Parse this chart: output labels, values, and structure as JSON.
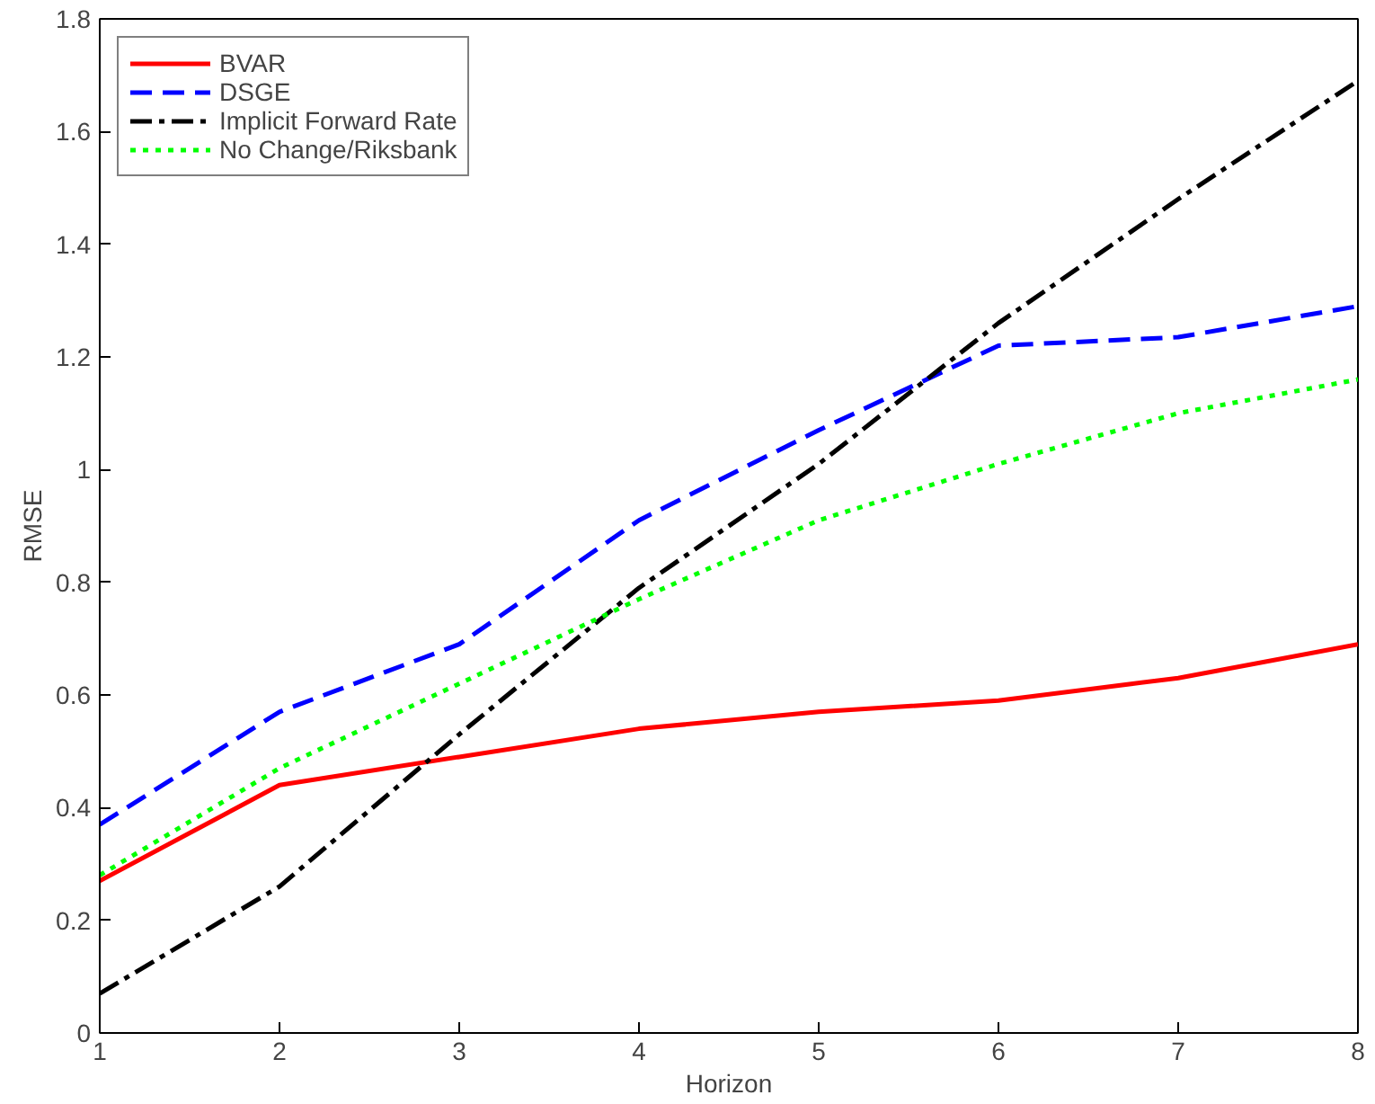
{
  "chart_data": {
    "type": "line",
    "xlabel": "Horizon",
    "ylabel": "RMSE",
    "x": [
      1,
      2,
      3,
      4,
      5,
      6,
      7,
      8
    ],
    "series": [
      {
        "name": "BVAR",
        "color": "#ff0000",
        "line_style": "solid",
        "values": [
          0.27,
          0.44,
          0.49,
          0.54,
          0.57,
          0.59,
          0.63,
          0.69
        ]
      },
      {
        "name": "DSGE",
        "color": "#0000ff",
        "line_style": "dashed",
        "values": [
          0.37,
          0.57,
          0.69,
          0.91,
          1.07,
          1.22,
          1.235,
          1.29
        ]
      },
      {
        "name": "Implicit Forward Rate",
        "color": "#000000",
        "line_style": "dashdot",
        "values": [
          0.07,
          0.26,
          0.53,
          0.79,
          1.01,
          1.26,
          1.48,
          1.69
        ]
      },
      {
        "name": "No Change/Riksbank",
        "color": "#00ff00",
        "line_style": "dotted",
        "values": [
          0.28,
          0.47,
          0.62,
          0.77,
          0.91,
          1.01,
          1.1,
          1.16
        ]
      }
    ],
    "xlim": [
      1,
      8
    ],
    "ylim": [
      0,
      1.8
    ],
    "xticks": [
      1,
      2,
      3,
      4,
      5,
      6,
      7,
      8
    ],
    "yticks": [
      0,
      0.2,
      0.4,
      0.6,
      0.8,
      1,
      1.2,
      1.4,
      1.6,
      1.8
    ],
    "grid": false,
    "legend": "top left",
    "marker": "none"
  }
}
